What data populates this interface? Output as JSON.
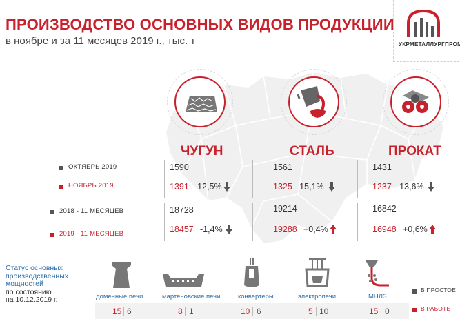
{
  "title": "ПРОИЗВОДСТВО ОСНОВНЫХ ВИДОВ ПРОДУКЦИИ",
  "subtitle": "в ноябре и за 11 месяцев 2019 г., тыс. т",
  "logo": {
    "text": "УКРМЕТАЛЛУРГПРОМ"
  },
  "colors": {
    "accent": "#c8212c",
    "gray": "#555555",
    "blue": "#2e6fa7"
  },
  "legend": {
    "oct": "ОКТЯБРЬ 2019",
    "nov": "НОЯБРЬ 2019",
    "ytd2018": "2018 - 11 МЕСЯЦЕВ",
    "ytd2019": "2019 - 11 МЕСЯЦЕВ"
  },
  "products": [
    {
      "name": "ЧУГУН",
      "icon": "pig-iron-icon",
      "oct": "1590",
      "nov": "1391",
      "nov_change": "-12,5%",
      "nov_dir": "down",
      "ytd2018": "18728",
      "ytd2019": "18457",
      "ytd_change": "-1,4%",
      "ytd_dir": "down"
    },
    {
      "name": "СТАЛЬ",
      "icon": "steel-ladle-icon",
      "oct": "1561",
      "nov": "1325",
      "nov_change": "-15,1%",
      "nov_dir": "down",
      "ytd2018": "19214",
      "ytd2019": "19288",
      "ytd_change": "+0,4%",
      "ytd_dir": "up"
    },
    {
      "name": "ПРОКАТ",
      "icon": "rolled-metal-icon",
      "oct": "1431",
      "nov": "1237",
      "nov_change": "-13,6%",
      "nov_dir": "down",
      "ytd2018": "16842",
      "ytd2019": "16948",
      "ytd_change": "+0,6%",
      "ytd_dir": "up"
    }
  ],
  "status": {
    "line1": "Статус основных",
    "line2": "производственных",
    "line3": "мощностей",
    "line4": "по состоянию",
    "line5": "на 10.12.2019 г."
  },
  "equipment": [
    {
      "label": "доменные печи",
      "icon": "blast-furnace-icon",
      "working": "15",
      "idle": "6"
    },
    {
      "label": "мартеновские печи",
      "icon": "open-hearth-furnace-icon",
      "working": "8",
      "idle": "1"
    },
    {
      "label": "конвертеры",
      "icon": "converter-icon",
      "working": "10",
      "idle": "6"
    },
    {
      "label": "электропечи",
      "icon": "electric-furnace-icon",
      "working": "5",
      "idle": "10"
    },
    {
      "label": "МНЛЗ",
      "icon": "continuous-caster-icon",
      "working": "15",
      "idle": "0"
    }
  ],
  "equip_legend": {
    "idle": "В ПРОСТОЕ",
    "working": "В РАБОТЕ"
  }
}
